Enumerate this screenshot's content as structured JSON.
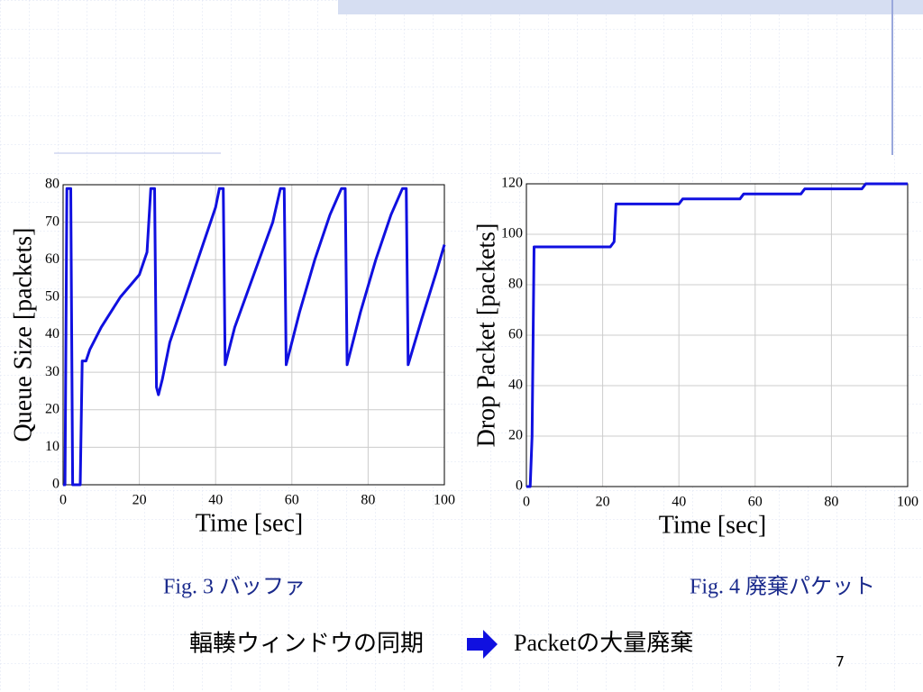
{
  "chart_data": [
    {
      "type": "line",
      "caption": "Fig. 3  バッファ",
      "xlabel": "Time [sec]",
      "ylabel": "Queue Size [packets]",
      "x": [
        0,
        0.5,
        1,
        2,
        2.5,
        3,
        4.5,
        5,
        6,
        7,
        10,
        15,
        20,
        22,
        23,
        24,
        24.5,
        25,
        26,
        28,
        32,
        36,
        40,
        41,
        42,
        42.5,
        45,
        50,
        55,
        57,
        58,
        58.5,
        62,
        66,
        70,
        73,
        74,
        74.5,
        78,
        82,
        86,
        89,
        90,
        90.5,
        94,
        98,
        100
      ],
      "values": [
        0,
        0,
        79,
        79,
        0,
        0,
        0,
        33,
        33,
        36,
        42,
        50,
        56,
        62,
        79,
        79,
        26,
        24,
        28,
        38,
        50,
        62,
        74,
        79,
        79,
        32,
        42,
        56,
        70,
        79,
        79,
        32,
        46,
        60,
        72,
        79,
        79,
        32,
        46,
        60,
        72,
        79,
        79,
        32,
        44,
        57,
        64
      ],
      "color": "#1010e0",
      "xlim": [
        0,
        100
      ],
      "ylim": [
        0,
        80
      ],
      "xticks": [
        0,
        20,
        40,
        60,
        80,
        100
      ],
      "yticks": [
        0,
        10,
        20,
        30,
        40,
        50,
        60,
        70,
        80
      ],
      "grid": true
    },
    {
      "type": "line",
      "caption": "Fig. 4  廃棄パケット",
      "xlabel": "Time [sec]",
      "ylabel": "Drop Packet [packets]",
      "x": [
        0,
        1,
        1.5,
        2,
        22,
        23,
        23.5,
        40,
        41,
        56,
        57,
        72,
        73,
        88,
        89,
        100
      ],
      "values": [
        0,
        0,
        20,
        95,
        95,
        97,
        112,
        112,
        114,
        114,
        116,
        116,
        118,
        118,
        120,
        120
      ],
      "color": "#1010e0",
      "xlim": [
        0,
        100
      ],
      "ylim": [
        0,
        120
      ],
      "xticks": [
        0,
        20,
        40,
        60,
        80,
        100
      ],
      "yticks": [
        0,
        20,
        40,
        60,
        80,
        100,
        120
      ],
      "grid": true
    }
  ],
  "slide": {
    "left_text": "輻輳ウィンドウの同期",
    "right_text": "Packetの大量廃棄",
    "page": "7"
  }
}
